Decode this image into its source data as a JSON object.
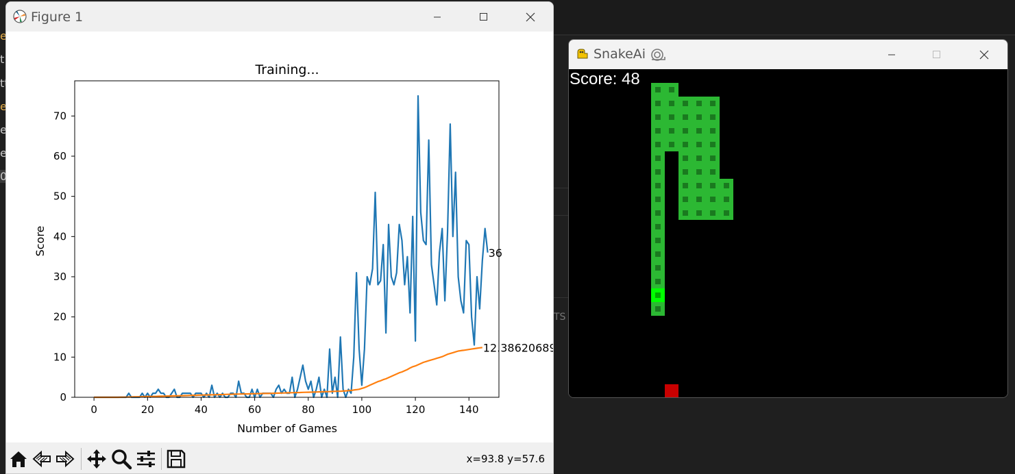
{
  "figure_window": {
    "title": "Figure 1",
    "coords_readout": "x=93.8 y=57.6"
  },
  "chart_data": {
    "type": "line",
    "title": "Training...",
    "xlabel": "Number of Games",
    "ylabel": "Score",
    "xlim": [
      -7.2,
      151.2
    ],
    "ylim": [
      0,
      78.75
    ],
    "xticks": [
      0,
      20,
      40,
      60,
      80,
      100,
      120,
      140
    ],
    "yticks": [
      0,
      10,
      20,
      30,
      40,
      50,
      60,
      70
    ],
    "grid": false,
    "series": [
      {
        "color": "#1f77b4",
        "values": [
          0,
          0,
          0,
          0,
          0,
          0,
          0,
          0,
          0,
          0,
          0,
          0,
          0,
          1,
          0,
          0,
          0,
          0,
          1,
          0,
          1,
          0,
          1,
          1,
          2,
          1,
          1,
          0,
          0,
          1,
          2,
          0,
          0,
          1,
          1,
          1,
          1,
          0,
          1,
          1,
          1,
          0,
          1,
          0,
          3,
          0,
          1,
          0,
          1,
          0,
          0,
          1,
          1,
          0,
          4,
          1,
          1,
          0,
          0,
          2,
          0,
          2,
          0,
          1,
          1,
          1,
          1,
          0,
          2,
          3,
          1,
          2,
          1,
          1,
          5,
          0,
          2,
          5,
          8,
          4,
          2,
          4,
          0,
          2,
          5,
          0,
          2,
          0,
          12,
          1,
          5,
          0,
          15,
          2,
          0,
          2,
          1,
          10,
          31,
          12,
          3,
          12,
          30,
          28,
          32,
          51,
          28,
          29,
          38,
          16,
          43,
          30,
          28,
          31,
          43,
          39,
          28,
          35,
          21,
          45,
          14,
          75,
          46,
          39,
          38,
          64,
          33,
          28,
          23,
          36,
          42,
          24,
          41,
          68,
          40,
          56,
          30,
          24,
          21,
          39,
          38,
          20,
          13,
          30,
          22,
          34,
          42,
          36
        ],
        "end_label": "36"
      },
      {
        "color": "#ff7f0e",
        "values": [
          0,
          0,
          0,
          0,
          0,
          0,
          0,
          0,
          0,
          0,
          0.02,
          0.03,
          0.05,
          0.07,
          0.08,
          0.1,
          0.12,
          0.13,
          0.15,
          0.17,
          0.18,
          0.2,
          0.22,
          0.23,
          0.25,
          0.27,
          0.29,
          0.3,
          0.32,
          0.34,
          0.36,
          0.38,
          0.4,
          0.41,
          0.43,
          0.45,
          0.47,
          0.49,
          0.5,
          0.52,
          0.54,
          0.56,
          0.58,
          0.6,
          0.62,
          0.63,
          0.65,
          0.67,
          0.69,
          0.71,
          0.73,
          0.74,
          0.76,
          0.78,
          0.8,
          0.81,
          0.83,
          0.84,
          0.86,
          0.87,
          0.89,
          0.9,
          0.92,
          0.93,
          0.95,
          0.96,
          0.98,
          1,
          1.02,
          1.04,
          1.06,
          1.08,
          1.1,
          1.12,
          1.14,
          1.16,
          1.18,
          1.2,
          1.22,
          1.24,
          1.26,
          1.28,
          1.3,
          1.32,
          1.34,
          1.36,
          1.38,
          1.4,
          1.42,
          1.45,
          1.48,
          1.5,
          1.5,
          1.55,
          1.6,
          1.65,
          1.7,
          1.8,
          1.9,
          2.0,
          2.2,
          2.4,
          2.7,
          3.0,
          3.3,
          3.6,
          3.9,
          4.1,
          4.4,
          4.6,
          4.9,
          5.2,
          5.5,
          5.8,
          6.1,
          6.3,
          6.6,
          6.9,
          7.3,
          7.6,
          7.8,
          8.1,
          8.4,
          8.7,
          8.9,
          9.1,
          9.3,
          9.5,
          9.7,
          9.9,
          10.1,
          10.4,
          10.7,
          10.9,
          11.1,
          11.3,
          11.5,
          11.6,
          11.7,
          11.8,
          11.9,
          12.0,
          12.1,
          12.2,
          12.3,
          12.38
        ],
        "end_label": "12.38620689"
      }
    ]
  },
  "snake_window": {
    "title": "SnakeAi",
    "score_text": "Score: 48"
  },
  "colors": {
    "snake_body": "#2cb833",
    "snake_head": "#00ff00",
    "food": "#c80000",
    "game_bg": "#000000"
  },
  "game_state": {
    "grid_size": 20,
    "snake_cells": [
      [
        6,
        17
      ],
      [
        6,
        16
      ],
      [
        6,
        15
      ],
      [
        6,
        14
      ],
      [
        6,
        13
      ],
      [
        6,
        12
      ],
      [
        6,
        11
      ],
      [
        6,
        10
      ],
      [
        6,
        9
      ],
      [
        6,
        8
      ],
      [
        6,
        7
      ],
      [
        6,
        6
      ],
      [
        6,
        5
      ],
      [
        6,
        4
      ],
      [
        6,
        3
      ],
      [
        6,
        2
      ],
      [
        6,
        1
      ],
      [
        7,
        1
      ],
      [
        7,
        2
      ],
      [
        7,
        3
      ],
      [
        7,
        4
      ],
      [
        7,
        5
      ],
      [
        8,
        2
      ],
      [
        8,
        3
      ],
      [
        8,
        4
      ],
      [
        8,
        5
      ],
      [
        8,
        6
      ],
      [
        8,
        7
      ],
      [
        8,
        8
      ],
      [
        8,
        9
      ],
      [
        8,
        10
      ],
      [
        9,
        2
      ],
      [
        9,
        3
      ],
      [
        9,
        4
      ],
      [
        9,
        5
      ],
      [
        9,
        6
      ],
      [
        9,
        7
      ],
      [
        9,
        8
      ],
      [
        9,
        9
      ],
      [
        9,
        10
      ],
      [
        10,
        2
      ],
      [
        10,
        3
      ],
      [
        10,
        4
      ],
      [
        10,
        5
      ],
      [
        10,
        6
      ],
      [
        10,
        7
      ],
      [
        10,
        8
      ],
      [
        10,
        9
      ],
      [
        10,
        10
      ],
      [
        11,
        8
      ],
      [
        11,
        9
      ],
      [
        11,
        10
      ]
    ],
    "head": [
      6,
      16
    ],
    "food": [
      7,
      23
    ]
  },
  "background": {
    "left_fragments": [
      "e",
      "t",
      "tt",
      "e",
      "er",
      "e",
      "0"
    ],
    "right_fragment": "TS"
  },
  "icons": {
    "figure_app": "matplotlib-icon",
    "snake_app": "pygame-icon",
    "toolbar": [
      "home-icon",
      "back-icon",
      "forward-icon",
      "pan-icon",
      "zoom-icon",
      "configure-icon",
      "save-icon"
    ]
  }
}
